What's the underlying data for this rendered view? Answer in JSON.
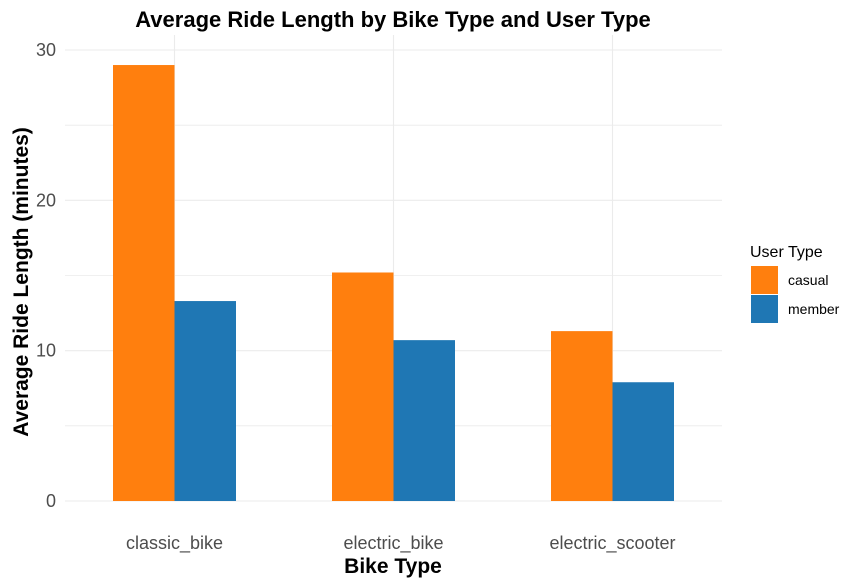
{
  "chart_data": {
    "type": "bar",
    "title": "Average Ride Length by Bike Type and User Type",
    "xlabel": "Bike Type",
    "ylabel": "Average Ride Length (minutes)",
    "categories": [
      "classic_bike",
      "electric_bike",
      "electric_scooter"
    ],
    "series": [
      {
        "name": "casual",
        "values": [
          29.0,
          15.2,
          11.3
        ],
        "color": "#FF7F0E"
      },
      {
        "name": "member",
        "values": [
          13.3,
          10.7,
          7.9
        ],
        "color": "#1F77B4"
      }
    ],
    "ylim": [
      0,
      30
    ],
    "yticks": [
      "0",
      "10",
      "20",
      "30"
    ],
    "legend": {
      "title": "User Type",
      "position": "right"
    },
    "grid": true,
    "grid_color": "#EBEBEB"
  }
}
